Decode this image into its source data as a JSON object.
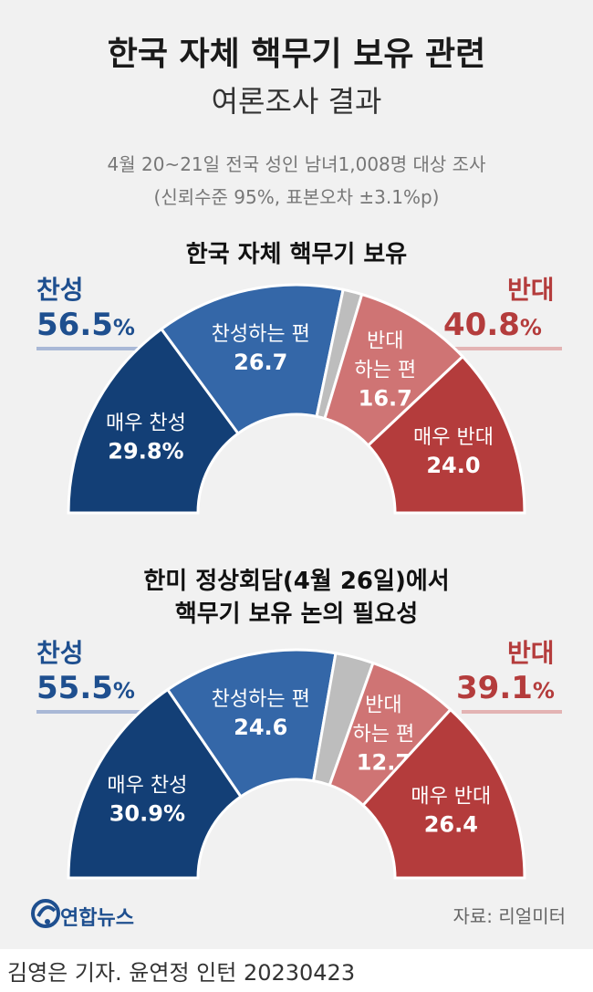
{
  "header": {
    "title": "한국 자체 핵무기 보유 관련",
    "subtitle": "여론조사 결과",
    "survey_line1": "4월 20~21일 전국 성인 남녀1,008명 대상 조사",
    "survey_line2": "(신뢰수준 95%, 표본오차 ±3.1%p)"
  },
  "colors": {
    "strongly_favor": "#133f76",
    "somewhat_favor": "#3467a8",
    "undecided": "#bdbdbd",
    "somewhat_oppose": "#cf7474",
    "strongly_oppose": "#b43c3c",
    "favor_accent": "#1e4f8f",
    "oppose_accent": "#b43c3c"
  },
  "chart_data": [
    {
      "type": "pie",
      "shape": "semi-donut",
      "title": "한국 자체 핵무기 보유",
      "favor": {
        "label": "찬성",
        "value": "56.5",
        "unit": "%"
      },
      "oppose": {
        "label": "반대",
        "value": "40.8",
        "unit": "%"
      },
      "slices": [
        {
          "label": "매우 찬성",
          "value": 29.8,
          "text": "29.8%",
          "color": "#133f76"
        },
        {
          "label": "찬성하는 편",
          "value": 26.7,
          "text": "26.7",
          "color": "#3467a8"
        },
        {
          "label": "",
          "value": 2.7,
          "text": "",
          "color": "#bdbdbd"
        },
        {
          "label": "반대\n하는 편",
          "value": 16.7,
          "text": "16.7",
          "color": "#cf7474"
        },
        {
          "label": "매우 반대",
          "value": 24.0,
          "text": "24.0",
          "color": "#b43c3c"
        }
      ]
    },
    {
      "type": "pie",
      "shape": "semi-donut",
      "title_line1": "한미 정상회담(4월 26일)에서",
      "title_line2": "핵무기 보유 논의 필요성",
      "favor": {
        "label": "찬성",
        "value": "55.5",
        "unit": "%"
      },
      "oppose": {
        "label": "반대",
        "value": "39.1",
        "unit": "%"
      },
      "slices": [
        {
          "label": "매우 찬성",
          "value": 30.9,
          "text": "30.9%",
          "color": "#133f76"
        },
        {
          "label": "찬성하는 편",
          "value": 24.6,
          "text": "24.6",
          "color": "#3467a8"
        },
        {
          "label": "",
          "value": 5.4,
          "text": "",
          "color": "#bdbdbd"
        },
        {
          "label": "반대\n하는 편",
          "value": 12.7,
          "text": "12.7",
          "color": "#cf7474"
        },
        {
          "label": "매우 반대",
          "value": 26.4,
          "text": "26.4",
          "color": "#b43c3c"
        }
      ]
    }
  ],
  "footer": {
    "logo_text": "연합뉴스",
    "source": "자료: 리얼미터",
    "credit": "김영은 기자. 윤연정 인턴  20230423"
  }
}
